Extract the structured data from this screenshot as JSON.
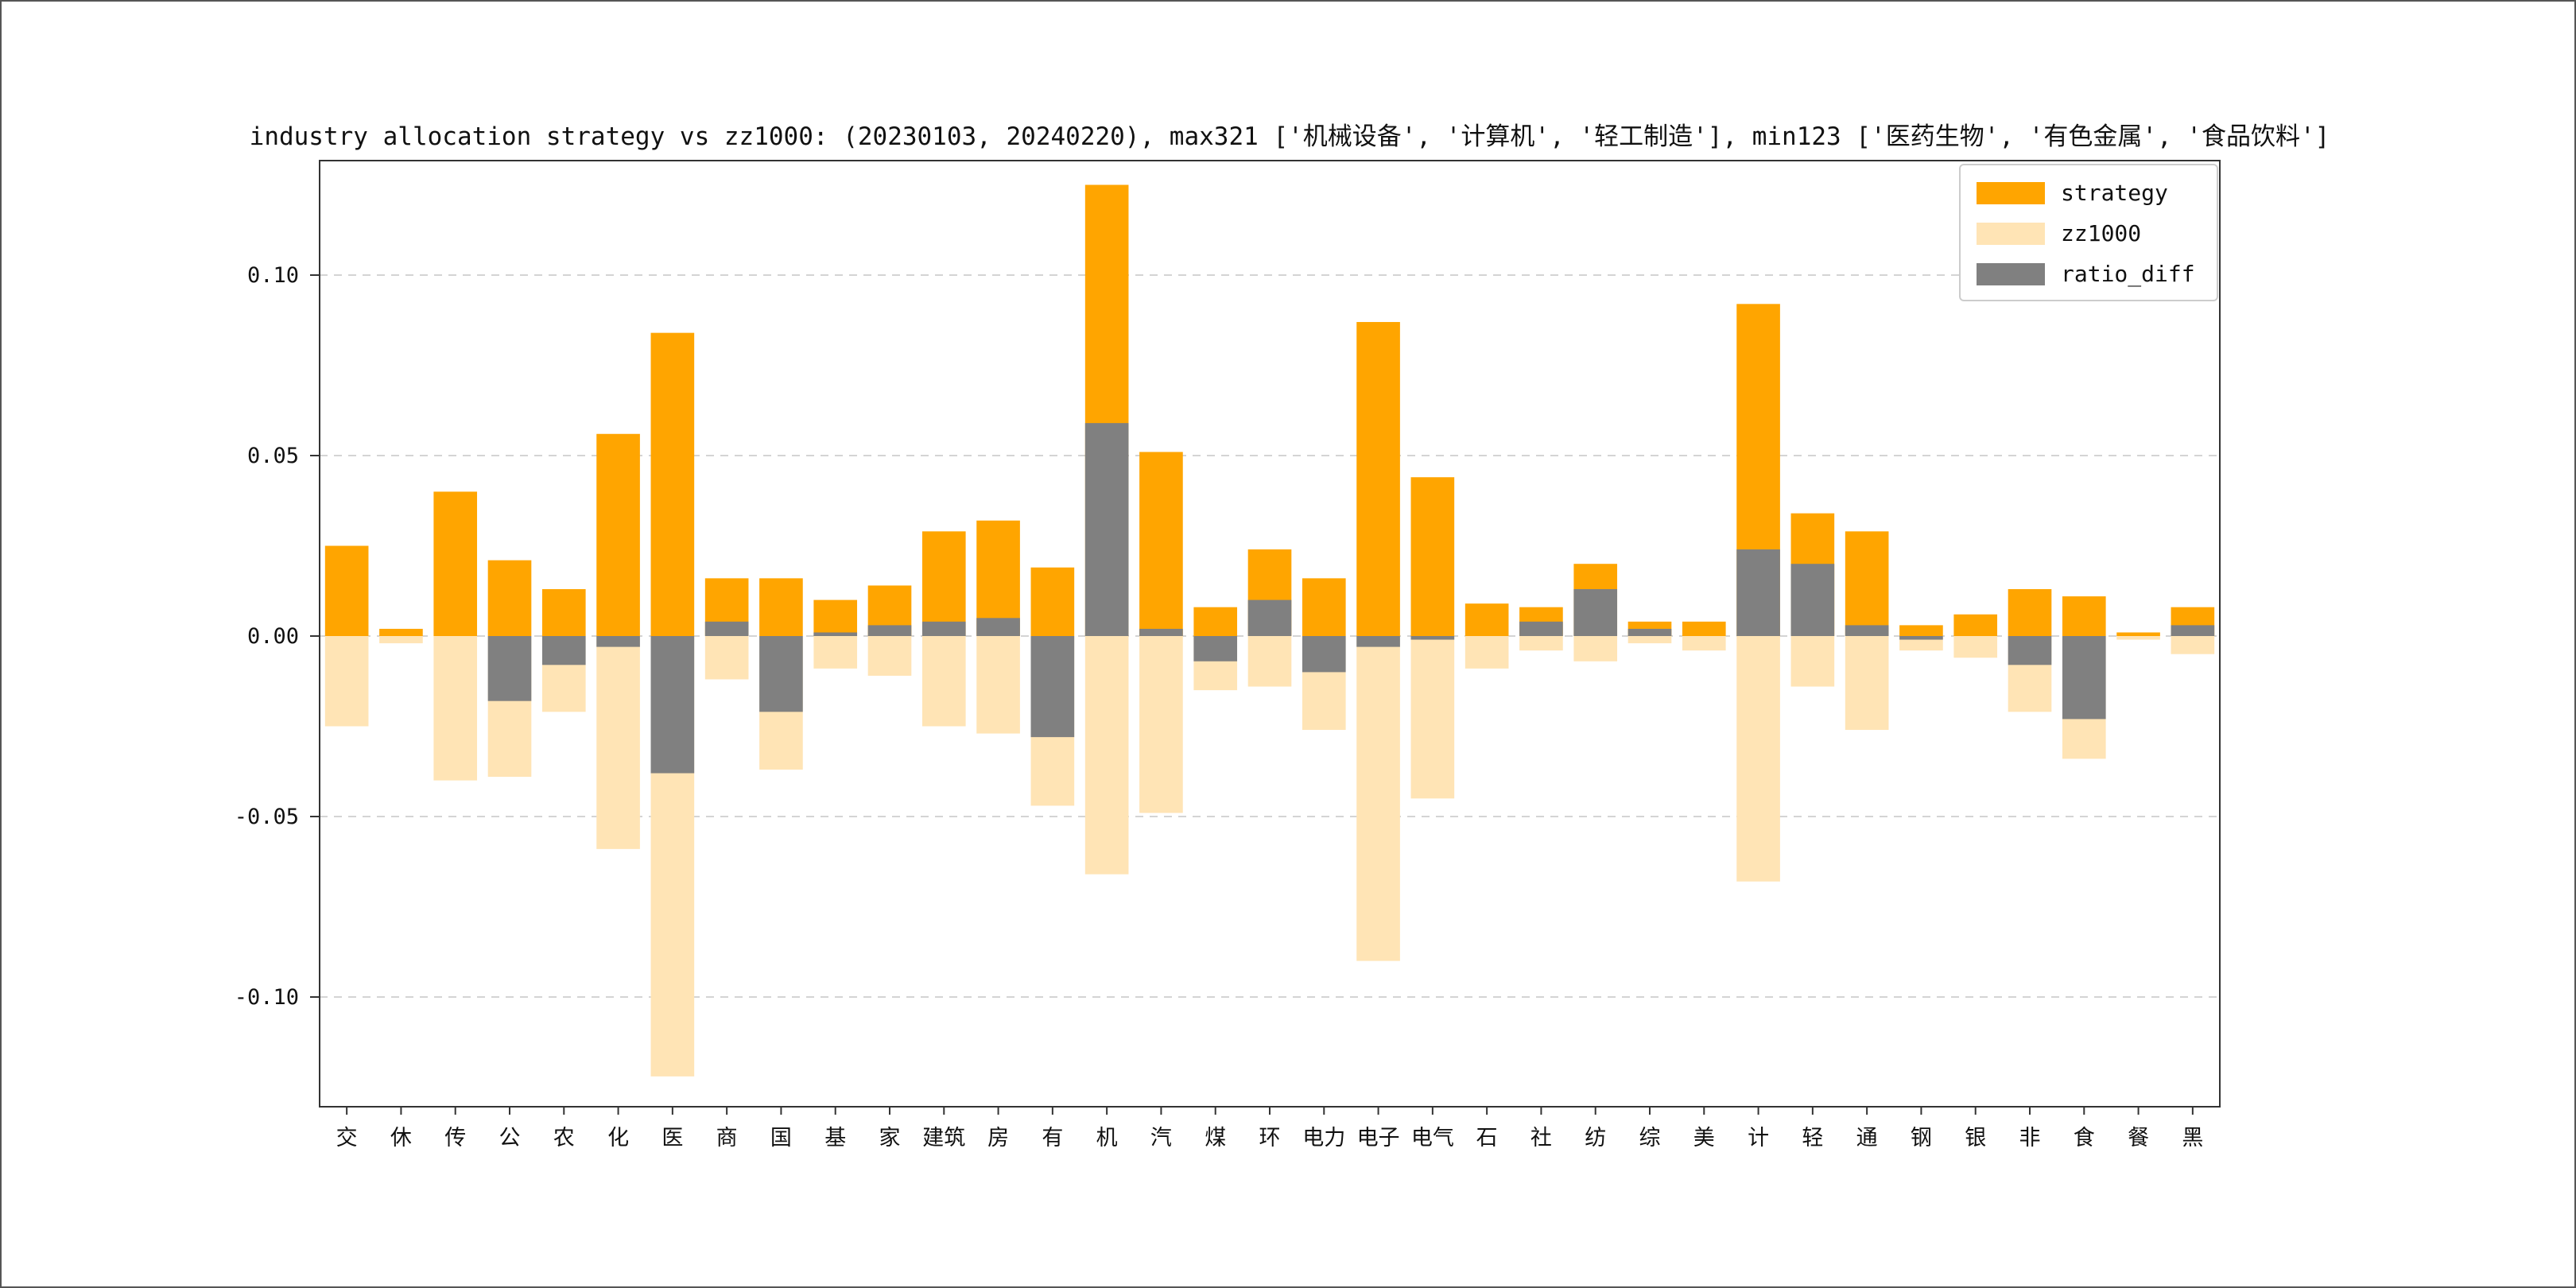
{
  "chart_data": {
    "type": "bar",
    "title": "industry allocation strategy vs zz1000: (20230103, 20240220), max321 ['机械设备', '计算机', '轻工制造'], min123 ['医药生物', '有色金属', '食品饮料']",
    "categories": [
      "交",
      "休",
      "传",
      "公",
      "农",
      "化",
      "医",
      "商",
      "国",
      "基",
      "家",
      "建筑",
      "房",
      "有",
      "机",
      "汽",
      "煤",
      "环",
      "电力",
      "电子",
      "电气",
      "石",
      "社",
      "纺",
      "综",
      "美",
      "计",
      "轻",
      "通",
      "钢",
      "银",
      "非",
      "食",
      "餐",
      "黑"
    ],
    "series": [
      {
        "name": "strategy",
        "color": "#FFA500",
        "direction": "up",
        "values": [
          0.025,
          0.002,
          0.04,
          0.021,
          0.013,
          0.056,
          0.084,
          0.016,
          0.016,
          0.01,
          0.014,
          0.029,
          0.032,
          0.019,
          0.125,
          0.051,
          0.008,
          0.024,
          0.016,
          0.087,
          0.044,
          0.009,
          0.008,
          0.02,
          0.004,
          0.004,
          0.092,
          0.034,
          0.029,
          0.003,
          0.006,
          0.013,
          0.011,
          0.001,
          0.008
        ]
      },
      {
        "name": "zz1000",
        "color": "#FFE4B5",
        "direction": "down",
        "values": [
          0.025,
          0.002,
          0.04,
          0.039,
          0.021,
          0.059,
          0.122,
          0.012,
          0.037,
          0.009,
          0.011,
          0.025,
          0.027,
          0.047,
          0.066,
          0.049,
          0.015,
          0.014,
          0.026,
          0.09,
          0.045,
          0.009,
          0.004,
          0.007,
          0.002,
          0.004,
          0.068,
          0.014,
          0.026,
          0.004,
          0.006,
          0.021,
          0.034,
          0.001,
          0.005
        ]
      },
      {
        "name": "ratio_diff",
        "color": "#808080",
        "direction": "signed",
        "values": [
          0.0,
          0.0,
          0.0,
          -0.018,
          -0.008,
          -0.003,
          -0.038,
          0.004,
          -0.021,
          0.001,
          0.003,
          0.004,
          0.005,
          -0.028,
          0.059,
          0.002,
          -0.007,
          0.01,
          -0.01,
          -0.003,
          -0.001,
          0.0,
          0.004,
          0.013,
          0.002,
          0.0,
          0.024,
          0.02,
          0.003,
          -0.001,
          0.0,
          -0.008,
          -0.023,
          0.0,
          0.003
        ]
      }
    ],
    "yticks": [
      0.1,
      0.05,
      0.0,
      -0.05,
      -0.1
    ],
    "ytick_labels": [
      "0.10",
      "0.05",
      "0.00",
      "-0.05",
      "-0.10"
    ],
    "ylim": [
      -0.131,
      0.132
    ],
    "grid": "dashed-horizontal",
    "legend_position": "upper-right",
    "max321": [
      "机械设备",
      "计算机",
      "轻工制造"
    ],
    "min123": [
      "医药生物",
      "有色金属",
      "食品饮料"
    ]
  },
  "colors": {
    "background": "#ffffff",
    "grid": "#c6c6c6",
    "spine": "#333333",
    "text": "#111111"
  }
}
